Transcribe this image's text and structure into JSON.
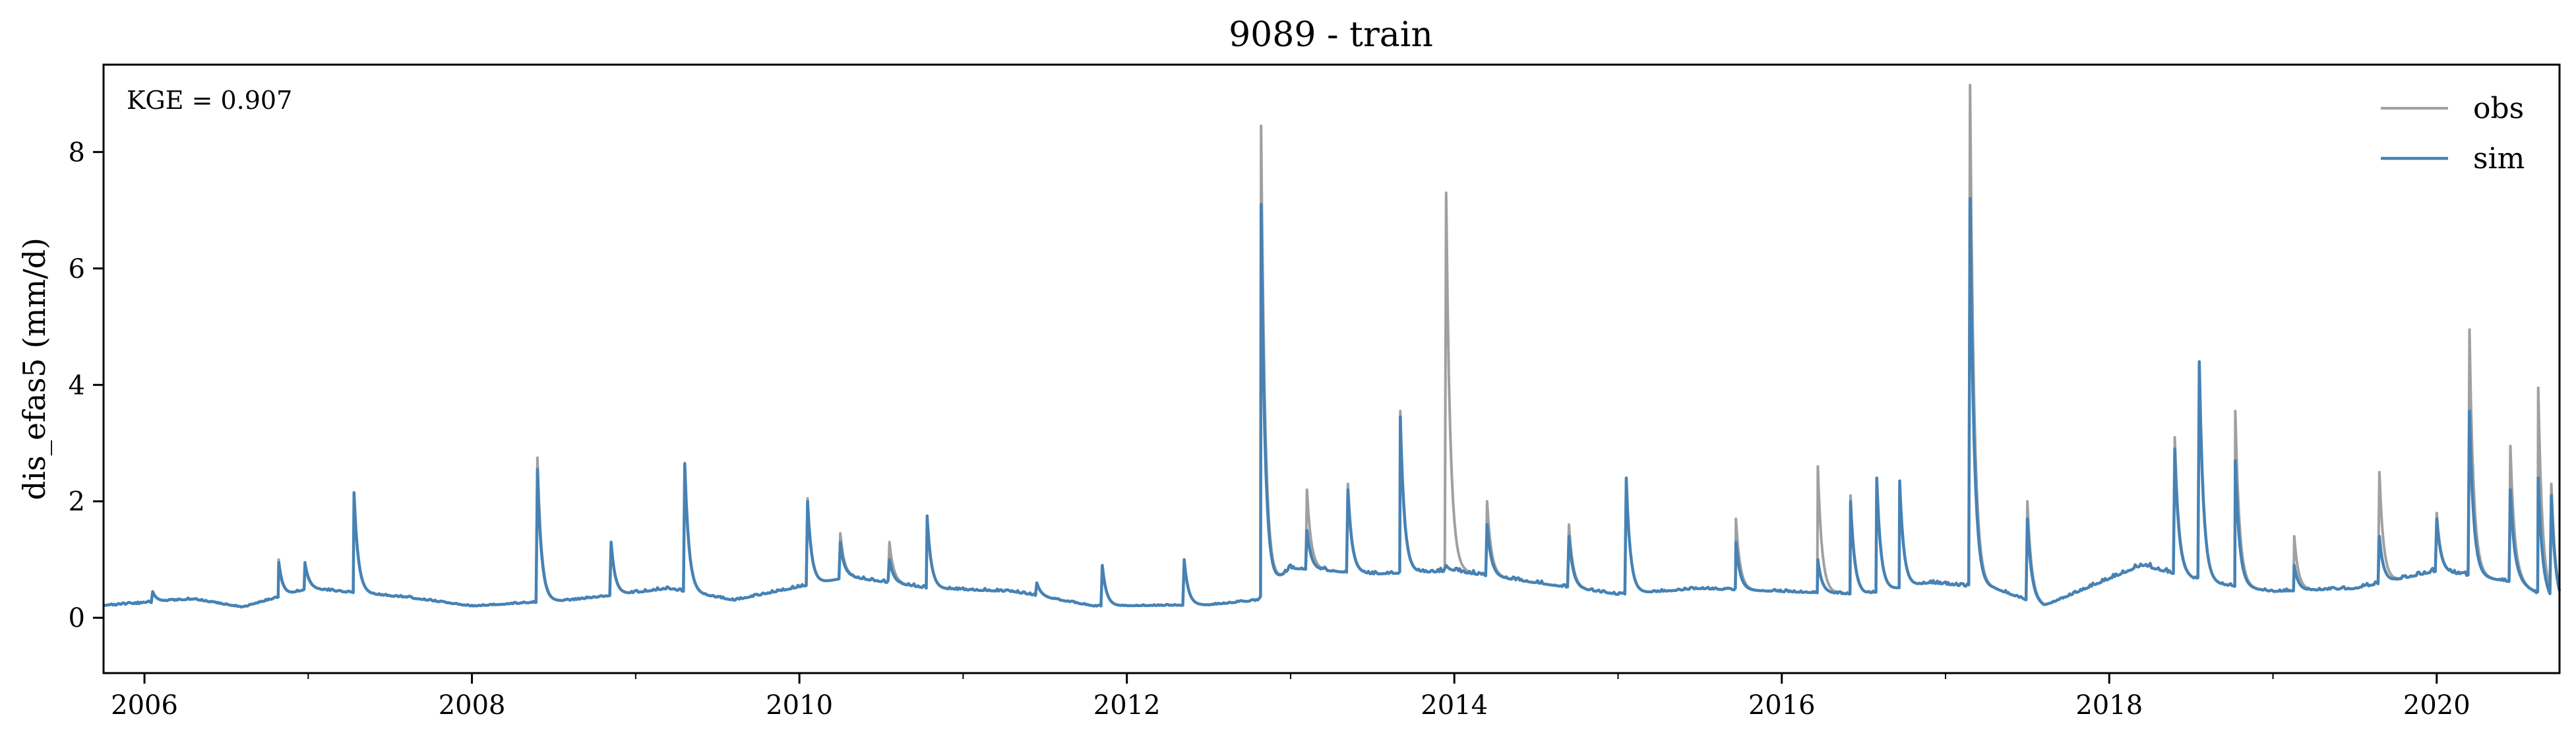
{
  "chart_data": {
    "type": "line",
    "title": "9089 - train",
    "xlabel": "",
    "ylabel": "dis_efas5 (mm/d)",
    "xlim": [
      2005.75,
      2020.75
    ],
    "ylim": [
      -0.95,
      9.5
    ],
    "x_ticks": [
      2006,
      2008,
      2010,
      2012,
      2014,
      2016,
      2018,
      2020
    ],
    "x_tick_labels": [
      "2006",
      "2008",
      "2010",
      "2012",
      "2014",
      "2016",
      "2018",
      "2020"
    ],
    "y_ticks": [
      0,
      2,
      4,
      6,
      8
    ],
    "y_tick_labels": [
      "0",
      "2",
      "4",
      "6",
      "8"
    ],
    "annotation": "KGE = 0.907",
    "legend": {
      "position": "top-right",
      "entries": [
        "obs",
        "sim"
      ]
    },
    "colors": {
      "obs": "#a0a0a0",
      "sim": "#4682b4"
    },
    "grid": false,
    "baseflow": [
      [
        2005.75,
        0.22
      ],
      [
        2006.3,
        0.32
      ],
      [
        2006.6,
        0.18
      ],
      [
        2007.0,
        0.5
      ],
      [
        2007.6,
        0.35
      ],
      [
        2008.0,
        0.2
      ],
      [
        2008.6,
        0.3
      ],
      [
        2009.2,
        0.5
      ],
      [
        2009.6,
        0.3
      ],
      [
        2010.3,
        0.7
      ],
      [
        2010.8,
        0.5
      ],
      [
        2011.3,
        0.45
      ],
      [
        2011.8,
        0.2
      ],
      [
        2012.5,
        0.22
      ],
      [
        2012.8,
        0.3
      ],
      [
        2013.0,
        0.85
      ],
      [
        2013.5,
        0.75
      ],
      [
        2014.0,
        0.8
      ],
      [
        2014.5,
        0.6
      ],
      [
        2015.0,
        0.4
      ],
      [
        2015.5,
        0.5
      ],
      [
        2016.0,
        0.45
      ],
      [
        2016.5,
        0.4
      ],
      [
        2016.9,
        0.6
      ],
      [
        2017.3,
        0.5
      ],
      [
        2017.6,
        0.2
      ],
      [
        2018.2,
        0.9
      ],
      [
        2018.6,
        0.6
      ],
      [
        2019.0,
        0.45
      ],
      [
        2019.5,
        0.5
      ],
      [
        2020.0,
        0.8
      ],
      [
        2020.5,
        0.6
      ],
      [
        2020.75,
        0.2
      ]
    ],
    "peaks": [
      {
        "x": 2006.05,
        "obs": 0.45,
        "sim": 0.45
      },
      {
        "x": 2006.82,
        "obs": 1.0,
        "sim": 0.95
      },
      {
        "x": 2006.98,
        "obs": 0.9,
        "sim": 0.95
      },
      {
        "x": 2007.28,
        "obs": 2.1,
        "sim": 2.15
      },
      {
        "x": 2008.4,
        "obs": 2.75,
        "sim": 2.55
      },
      {
        "x": 2008.85,
        "obs": 1.3,
        "sim": 1.3
      },
      {
        "x": 2009.3,
        "obs": 2.6,
        "sim": 2.65
      },
      {
        "x": 2010.05,
        "obs": 2.05,
        "sim": 2.0
      },
      {
        "x": 2010.25,
        "obs": 1.45,
        "sim": 1.3
      },
      {
        "x": 2010.55,
        "obs": 1.3,
        "sim": 1.0
      },
      {
        "x": 2010.78,
        "obs": 1.75,
        "sim": 1.75
      },
      {
        "x": 2011.45,
        "obs": 0.6,
        "sim": 0.6
      },
      {
        "x": 2011.85,
        "obs": 0.9,
        "sim": 0.9
      },
      {
        "x": 2012.35,
        "obs": 1.0,
        "sim": 1.0
      },
      {
        "x": 2012.82,
        "obs": 8.45,
        "sim": 7.1
      },
      {
        "x": 2013.1,
        "obs": 2.2,
        "sim": 1.5
      },
      {
        "x": 2013.35,
        "obs": 2.3,
        "sim": 2.2
      },
      {
        "x": 2013.67,
        "obs": 3.55,
        "sim": 3.45
      },
      {
        "x": 2013.95,
        "obs": 7.3,
        "sim": 0.9
      },
      {
        "x": 2014.2,
        "obs": 2.0,
        "sim": 1.6
      },
      {
        "x": 2014.7,
        "obs": 1.6,
        "sim": 1.4
      },
      {
        "x": 2015.05,
        "obs": 2.4,
        "sim": 2.4
      },
      {
        "x": 2015.72,
        "obs": 1.7,
        "sim": 1.3
      },
      {
        "x": 2016.22,
        "obs": 2.6,
        "sim": 1.0
      },
      {
        "x": 2016.42,
        "obs": 2.1,
        "sim": 2.0
      },
      {
        "x": 2016.58,
        "obs": 2.4,
        "sim": 2.4
      },
      {
        "x": 2016.72,
        "obs": 2.35,
        "sim": 2.35
      },
      {
        "x": 2017.15,
        "obs": 9.15,
        "sim": 7.2
      },
      {
        "x": 2017.5,
        "obs": 2.0,
        "sim": 1.7
      },
      {
        "x": 2018.4,
        "obs": 3.1,
        "sim": 2.9
      },
      {
        "x": 2018.55,
        "obs": 4.3,
        "sim": 4.4
      },
      {
        "x": 2018.77,
        "obs": 3.55,
        "sim": 2.7
      },
      {
        "x": 2019.13,
        "obs": 1.4,
        "sim": 0.9
      },
      {
        "x": 2019.65,
        "obs": 2.5,
        "sim": 1.4
      },
      {
        "x": 2020.0,
        "obs": 1.8,
        "sim": 1.7
      },
      {
        "x": 2020.2,
        "obs": 4.95,
        "sim": 3.55
      },
      {
        "x": 2020.45,
        "obs": 2.95,
        "sim": 2.2
      },
      {
        "x": 2020.62,
        "obs": 3.95,
        "sim": 2.4
      },
      {
        "x": 2020.7,
        "obs": 2.3,
        "sim": 2.1
      }
    ]
  }
}
